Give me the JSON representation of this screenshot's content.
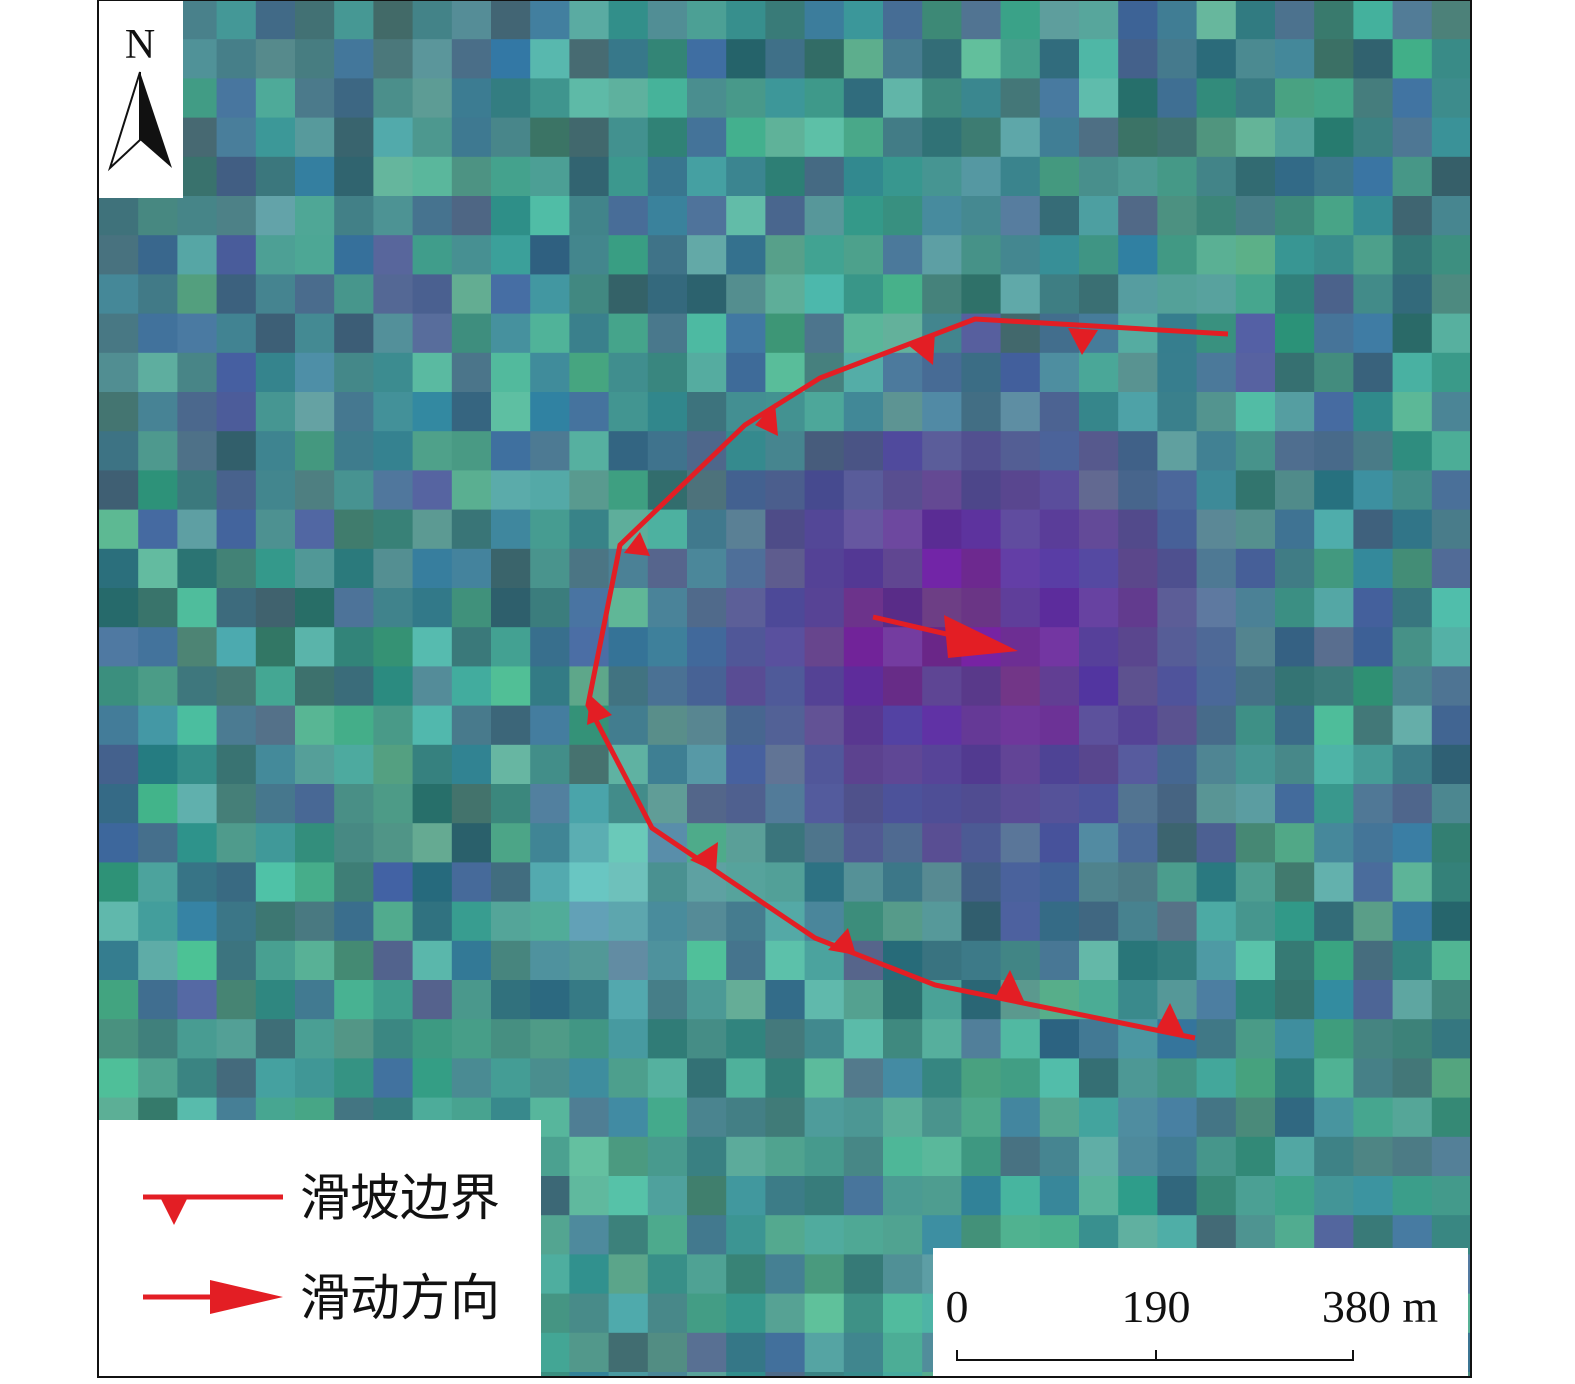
{
  "north_arrow": {
    "label": "N"
  },
  "legend": {
    "items": [
      {
        "label": "滑坡边界"
      },
      {
        "label": "滑动方向"
      }
    ]
  },
  "scale_bar": {
    "labels": [
      "0",
      "190",
      "380 m"
    ]
  }
}
